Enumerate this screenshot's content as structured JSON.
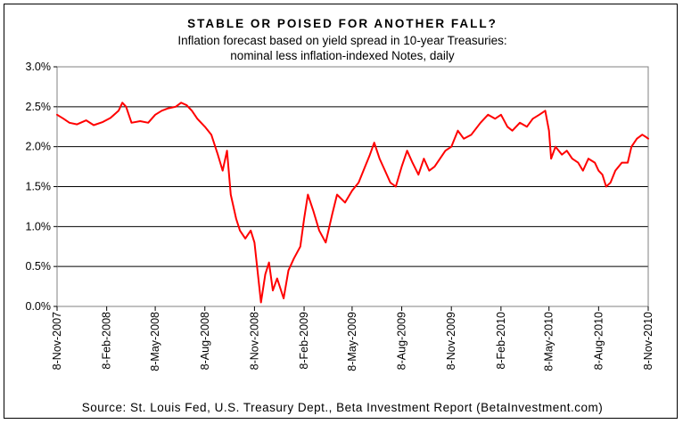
{
  "chart_data": {
    "type": "line",
    "title": "STABLE OR POISED FOR ANOTHER FALL?",
    "subtitle_line1": "Inflation forecast based on yield spread in 10-year Treasuries:",
    "subtitle_line2": "nominal less inflation-indexed Notes, daily",
    "source": "Source: St. Louis Fed, U.S. Treasury Dept., Beta Investment Report (BetaInvestment.com)",
    "ylim": [
      0,
      3.0
    ],
    "y_ticks": [
      "0.0%",
      "0.5%",
      "1.0%",
      "1.5%",
      "2.0%",
      "2.5%",
      "3.0%"
    ],
    "x_ticks": [
      "8-Nov-2007",
      "8-Feb-2008",
      "8-May-2008",
      "8-Aug-2008",
      "8-Nov-2008",
      "8-Feb-2009",
      "8-May-2009",
      "8-Aug-2009",
      "8-Nov-2009",
      "8-Feb-2010",
      "8-May-2010",
      "8-Aug-2010",
      "8-Nov-2010"
    ],
    "grid": "horizontal",
    "line_color": "#ff0000",
    "series": [
      {
        "name": "",
        "points": [
          [
            "2007-11-08",
            2.4
          ],
          [
            "2007-11-20",
            2.35
          ],
          [
            "2007-12-01",
            2.3
          ],
          [
            "2007-12-15",
            2.28
          ],
          [
            "2008-01-01",
            2.33
          ],
          [
            "2008-01-15",
            2.27
          ],
          [
            "2008-02-01",
            2.31
          ],
          [
            "2008-02-15",
            2.36
          ],
          [
            "2008-03-01",
            2.45
          ],
          [
            "2008-03-08",
            2.55
          ],
          [
            "2008-03-15",
            2.5
          ],
          [
            "2008-03-25",
            2.3
          ],
          [
            "2008-04-10",
            2.32
          ],
          [
            "2008-04-25",
            2.3
          ],
          [
            "2008-05-08",
            2.4
          ],
          [
            "2008-05-20",
            2.45
          ],
          [
            "2008-06-01",
            2.48
          ],
          [
            "2008-06-15",
            2.5
          ],
          [
            "2008-06-25",
            2.55
          ],
          [
            "2008-07-05",
            2.52
          ],
          [
            "2008-07-15",
            2.45
          ],
          [
            "2008-07-25",
            2.35
          ],
          [
            "2008-08-08",
            2.25
          ],
          [
            "2008-08-20",
            2.15
          ],
          [
            "2008-09-01",
            1.9
          ],
          [
            "2008-09-10",
            1.7
          ],
          [
            "2008-09-18",
            1.95
          ],
          [
            "2008-09-25",
            1.4
          ],
          [
            "2008-10-05",
            1.1
          ],
          [
            "2008-10-12",
            0.95
          ],
          [
            "2008-10-22",
            0.85
          ],
          [
            "2008-11-01",
            0.95
          ],
          [
            "2008-11-08",
            0.8
          ],
          [
            "2008-11-20",
            0.05
          ],
          [
            "2008-11-28",
            0.4
          ],
          [
            "2008-12-05",
            0.55
          ],
          [
            "2008-12-12",
            0.2
          ],
          [
            "2008-12-20",
            0.35
          ],
          [
            "2009-01-01",
            0.1
          ],
          [
            "2009-01-10",
            0.45
          ],
          [
            "2009-01-20",
            0.6
          ],
          [
            "2009-02-01",
            0.75
          ],
          [
            "2009-02-08",
            1.1
          ],
          [
            "2009-02-15",
            1.4
          ],
          [
            "2009-02-25",
            1.2
          ],
          [
            "2009-03-08",
            0.95
          ],
          [
            "2009-03-20",
            0.8
          ],
          [
            "2009-04-01",
            1.15
          ],
          [
            "2009-04-10",
            1.4
          ],
          [
            "2009-04-25",
            1.3
          ],
          [
            "2009-05-08",
            1.45
          ],
          [
            "2009-05-20",
            1.55
          ],
          [
            "2009-06-01",
            1.75
          ],
          [
            "2009-06-10",
            1.9
          ],
          [
            "2009-06-18",
            2.05
          ],
          [
            "2009-06-28",
            1.85
          ],
          [
            "2009-07-08",
            1.7
          ],
          [
            "2009-07-18",
            1.55
          ],
          [
            "2009-07-28",
            1.5
          ],
          [
            "2009-08-08",
            1.75
          ],
          [
            "2009-08-18",
            1.95
          ],
          [
            "2009-08-28",
            1.8
          ],
          [
            "2009-09-08",
            1.65
          ],
          [
            "2009-09-18",
            1.85
          ],
          [
            "2009-09-28",
            1.7
          ],
          [
            "2009-10-08",
            1.75
          ],
          [
            "2009-10-18",
            1.85
          ],
          [
            "2009-10-28",
            1.95
          ],
          [
            "2009-11-08",
            2.0
          ],
          [
            "2009-11-20",
            2.2
          ],
          [
            "2009-12-01",
            2.1
          ],
          [
            "2009-12-15",
            2.15
          ],
          [
            "2010-01-01",
            2.3
          ],
          [
            "2010-01-15",
            2.4
          ],
          [
            "2010-01-28",
            2.35
          ],
          [
            "2010-02-08",
            2.4
          ],
          [
            "2010-02-20",
            2.25
          ],
          [
            "2010-03-01",
            2.2
          ],
          [
            "2010-03-15",
            2.3
          ],
          [
            "2010-03-28",
            2.25
          ],
          [
            "2010-04-08",
            2.35
          ],
          [
            "2010-04-20",
            2.4
          ],
          [
            "2010-05-01",
            2.45
          ],
          [
            "2010-05-08",
            2.2
          ],
          [
            "2010-05-12",
            1.85
          ],
          [
            "2010-05-20",
            2.0
          ],
          [
            "2010-06-01",
            1.9
          ],
          [
            "2010-06-10",
            1.95
          ],
          [
            "2010-06-20",
            1.85
          ],
          [
            "2010-07-01",
            1.8
          ],
          [
            "2010-07-10",
            1.7
          ],
          [
            "2010-07-20",
            1.85
          ],
          [
            "2010-08-01",
            1.8
          ],
          [
            "2010-08-08",
            1.7
          ],
          [
            "2010-08-15",
            1.65
          ],
          [
            "2010-08-22",
            1.5
          ],
          [
            "2010-08-30",
            1.55
          ],
          [
            "2010-09-08",
            1.7
          ],
          [
            "2010-09-20",
            1.8
          ],
          [
            "2010-10-01",
            1.8
          ],
          [
            "2010-10-08",
            2.0
          ],
          [
            "2010-10-18",
            2.1
          ],
          [
            "2010-10-28",
            2.15
          ],
          [
            "2010-11-04",
            2.12
          ],
          [
            "2010-11-08",
            2.1
          ]
        ]
      }
    ]
  }
}
